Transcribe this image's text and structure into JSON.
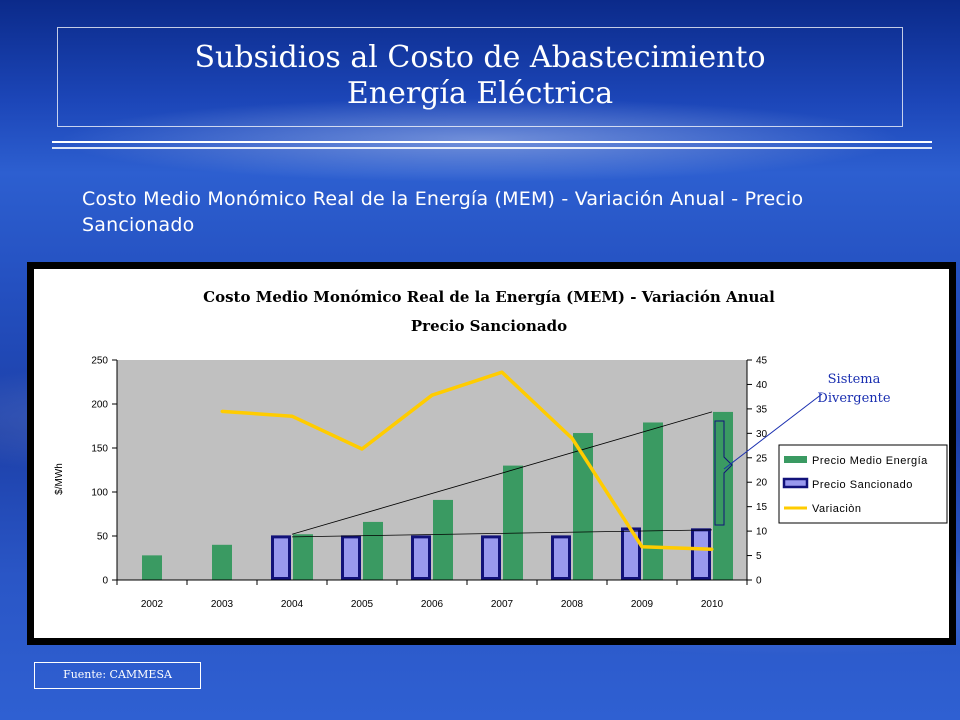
{
  "slide": {
    "title_line1": "Subsidios al Costo de Abastecimiento",
    "title_line2": "Energía Eléctrica",
    "subtitle": "Costo Medio Monómico Real de la Energía (MEM) - Variación Anual - Precio Sancionado",
    "source": "Fuente: CAMMESA"
  },
  "colors": {
    "bar_medio": "#3a9a62",
    "bar_sancionado": "#9999ee",
    "bar_sancionado_border": "#12127a",
    "line_variacion": "#ffcc00",
    "plot_bg": "#c0c0c0",
    "annotation": "#1a2fb0"
  },
  "chart_data": {
    "type": "bar",
    "title_line1": "Costo Medio Monómico Real de la Energía (MEM) - Variación Anual",
    "title_line2": "Precio Sancionado",
    "categories": [
      "2002",
      "2003",
      "2004",
      "2005",
      "2006",
      "2007",
      "2008",
      "2009",
      "2010"
    ],
    "ylabel": "$/MWh",
    "ylim": [
      0,
      250
    ],
    "yticks": [
      0,
      50,
      100,
      150,
      200,
      250
    ],
    "y2lim": [
      0,
      45
    ],
    "y2ticks": [
      0,
      5,
      10,
      15,
      20,
      25,
      30,
      35,
      40,
      45
    ],
    "series": [
      {
        "name": "Precio Medio Energía",
        "kind": "bar",
        "axis": "left",
        "values": [
          28,
          40,
          52,
          66,
          91,
          130,
          167,
          179,
          191
        ]
      },
      {
        "name": "Precio Sancionado",
        "kind": "bar",
        "axis": "left",
        "values": [
          null,
          null,
          49,
          49,
          49,
          49,
          49,
          58,
          57
        ]
      },
      {
        "name": "Variaciòn",
        "kind": "line",
        "axis": "right",
        "values": [
          null,
          34.5,
          33.5,
          26.8,
          37.8,
          42.5,
          29,
          6.8,
          6.3
        ]
      }
    ],
    "trendlines": [
      {
        "from_category": "2004",
        "to_category": "2010",
        "from_value": 52,
        "to_value": 191
      },
      {
        "from_category": "2004",
        "to_category": "2010",
        "from_value": 49,
        "to_value": 57
      }
    ],
    "annotation": {
      "line1": "Sistema",
      "line2": "Divergente"
    },
    "legend_position": "right",
    "grid": false
  }
}
